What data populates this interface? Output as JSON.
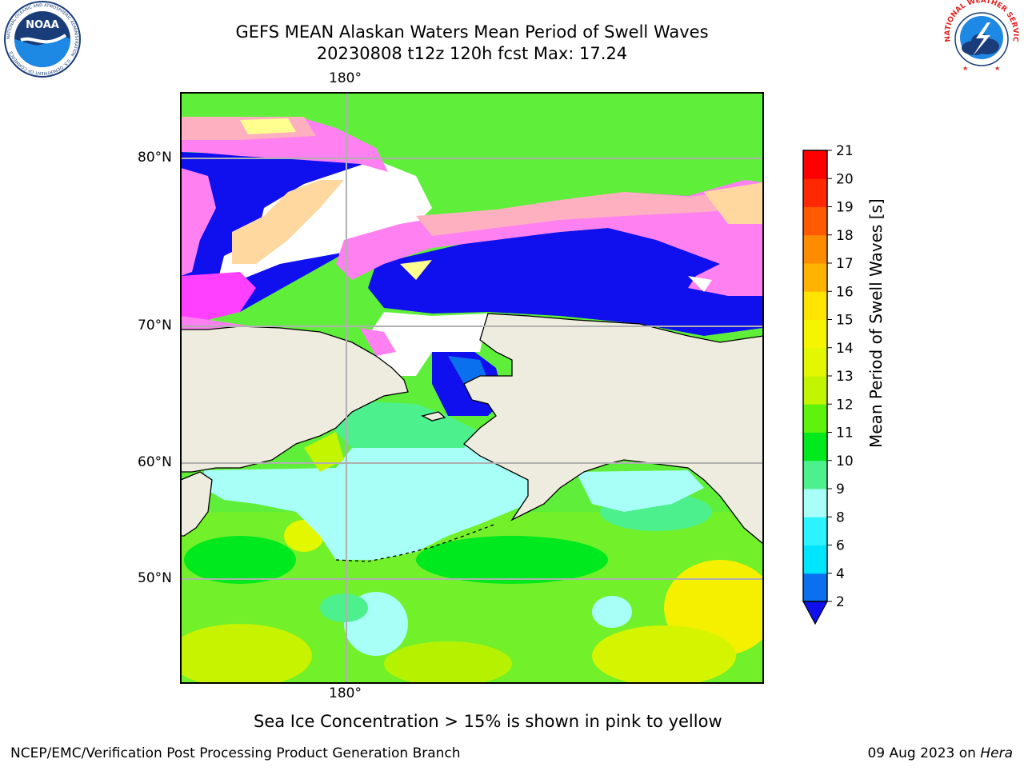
{
  "title": {
    "line1": "GEFS MEAN Alaskan Waters Mean Period of Swell Waves",
    "line2": "20230808 t12z 120h fcst   Max: 17.24"
  },
  "map": {
    "lon_label_top": "180°",
    "lon_label_bottom": "180°",
    "lat_labels": [
      "80°N",
      "70°N",
      "60°N",
      "50°N"
    ],
    "land_color": "#eeecdf",
    "ice_free_color": "#ffffff",
    "grid_color": "#b0b0b0"
  },
  "colorbar": {
    "label": "Mean Period of Swell Waves [s]",
    "ticks": [
      "21",
      "20",
      "19",
      "18",
      "17",
      "16",
      "15",
      "14",
      "13",
      "12",
      "11",
      "10",
      "9",
      "8",
      "6",
      "4",
      "2"
    ],
    "colors_bottom_to_top": [
      "#0a70ee",
      "#00e5ff",
      "#2cf3ff",
      "#a8fff8",
      "#4cf08c",
      "#00e81e",
      "#5ef20c",
      "#c4f500",
      "#e2f700",
      "#f5f500",
      "#ffe400",
      "#ffb300",
      "#ff8c00",
      "#ff5a00",
      "#ff2800",
      "#ff0000"
    ],
    "under_color": "#1010ee"
  },
  "ice_palette": [
    "#ff40ff",
    "#ff80f0",
    "#ffb0c0",
    "#ffd8a0",
    "#ffff90"
  ],
  "footer": {
    "note": "Sea Ice Concentration > 15% is shown in pink to yellow",
    "left": "NCEP/EMC/Verification Post Processing Product Generation Branch",
    "right_prefix": "09 Aug 2023 on ",
    "right_host": "Hera"
  },
  "logos": {
    "noaa": {
      "text": "NOAA",
      "ring_text": "NATIONAL OCEANIC AND ATMOSPHERIC ADMINISTRATION · U.S. DEPARTMENT OF COMMERCE"
    },
    "nws": {
      "text": "NATIONAL WEATHER SERVICE"
    }
  }
}
